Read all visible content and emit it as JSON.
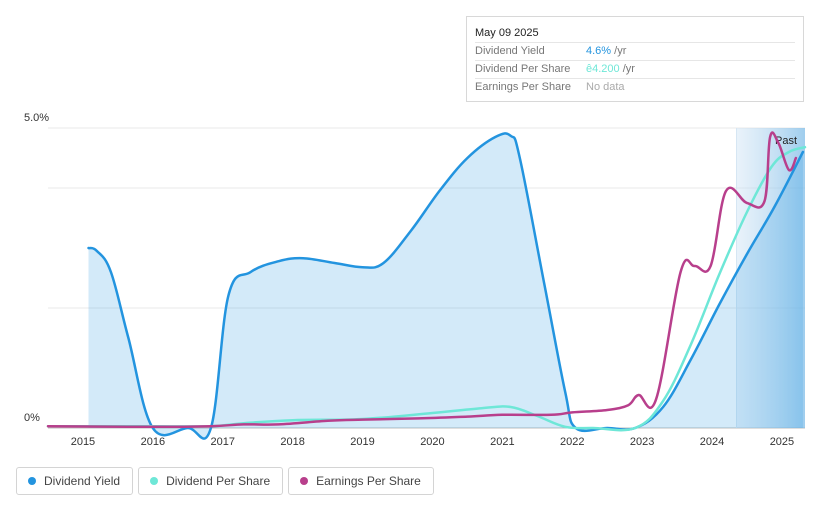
{
  "tooltip": {
    "date": "May 09 2025",
    "rows": [
      {
        "label": "Dividend Yield",
        "value": "4.6%",
        "unit": "/yr"
      },
      {
        "label": "Dividend Per Share",
        "value": "ê4.200",
        "unit": "/yr"
      },
      {
        "label": "Earnings Per Share",
        "value": "No data"
      }
    ]
  },
  "legend": [
    {
      "label": "Dividend Yield",
      "color": "#2394df"
    },
    {
      "label": "Dividend Per Share",
      "color": "#6ee7d7"
    },
    {
      "label": "Earnings Per Share",
      "color": "#b83f8c"
    }
  ],
  "chart_data": {
    "type": "area",
    "title": "",
    "xlabel": "",
    "ylabel": "",
    "xlim": [
      2014.5,
      2025.33
    ],
    "ylim": [
      0,
      5.0
    ],
    "y_tick_labels": [
      "5.0%",
      "0%"
    ],
    "x_tick_labels": [
      "2015",
      "2016",
      "2017",
      "2018",
      "2019",
      "2020",
      "2021",
      "2022",
      "2023",
      "2024",
      "2025"
    ],
    "grid": true,
    "past_marker": {
      "label": "Past",
      "from": 2024.35
    },
    "series": [
      {
        "name": "Dividend Yield",
        "color": "#2394df",
        "filled": true,
        "x": [
          2015.08,
          2015.2,
          2015.4,
          2015.65,
          2016.0,
          2016.5,
          2016.83,
          2017.08,
          2017.4,
          2017.8,
          2018.15,
          2018.6,
          2019.0,
          2019.3,
          2019.7,
          2020.1,
          2020.5,
          2020.9,
          2021.12,
          2021.25,
          2021.6,
          2021.9,
          2022.05,
          2022.5,
          2022.9,
          2023.3,
          2023.7,
          2024.1,
          2024.5,
          2024.9,
          2025.3
        ],
        "y": [
          3.0,
          2.95,
          2.6,
          1.5,
          0.0,
          0.0,
          0.0,
          2.2,
          2.6,
          2.78,
          2.83,
          2.75,
          2.68,
          2.75,
          3.3,
          3.95,
          4.5,
          4.85,
          4.87,
          4.5,
          2.4,
          0.6,
          0.0,
          0.0,
          0.0,
          0.35,
          1.15,
          2.05,
          2.9,
          3.7,
          4.6
        ]
      },
      {
        "name": "Dividend Per Share",
        "color": "#6ee7d7",
        "filled": false,
        "x": [
          2014.5,
          2016.0,
          2016.83,
          2017.3,
          2018.0,
          2019.0,
          2020.0,
          2020.7,
          2021.12,
          2021.5,
          2021.9,
          2022.3,
          2022.9,
          2023.3,
          2023.7,
          2024.1,
          2024.5,
          2024.85,
          2025.1,
          2025.33
        ],
        "y": [
          0.03,
          0.03,
          0.03,
          0.08,
          0.13,
          0.15,
          0.25,
          0.33,
          0.35,
          0.2,
          0.02,
          0.0,
          0.0,
          0.45,
          1.4,
          2.55,
          3.6,
          4.35,
          4.6,
          4.68
        ]
      },
      {
        "name": "Earnings Per Share",
        "color": "#b83f8c",
        "filled": false,
        "x": [
          2014.5,
          2016.0,
          2016.83,
          2017.3,
          2017.8,
          2018.5,
          2019.0,
          2019.8,
          2020.5,
          2021.0,
          2021.7,
          2022.0,
          2022.5,
          2022.8,
          2022.95,
          2023.2,
          2023.55,
          2023.75,
          2023.98,
          2024.2,
          2024.5,
          2024.75,
          2024.83,
          2024.95,
          2025.1,
          2025.2
        ],
        "y": [
          0.03,
          0.02,
          0.03,
          0.06,
          0.06,
          0.12,
          0.14,
          0.16,
          0.19,
          0.22,
          0.22,
          0.26,
          0.3,
          0.38,
          0.55,
          0.48,
          2.6,
          2.7,
          2.7,
          3.95,
          3.75,
          3.78,
          4.85,
          4.75,
          4.3,
          4.5
        ]
      }
    ]
  }
}
